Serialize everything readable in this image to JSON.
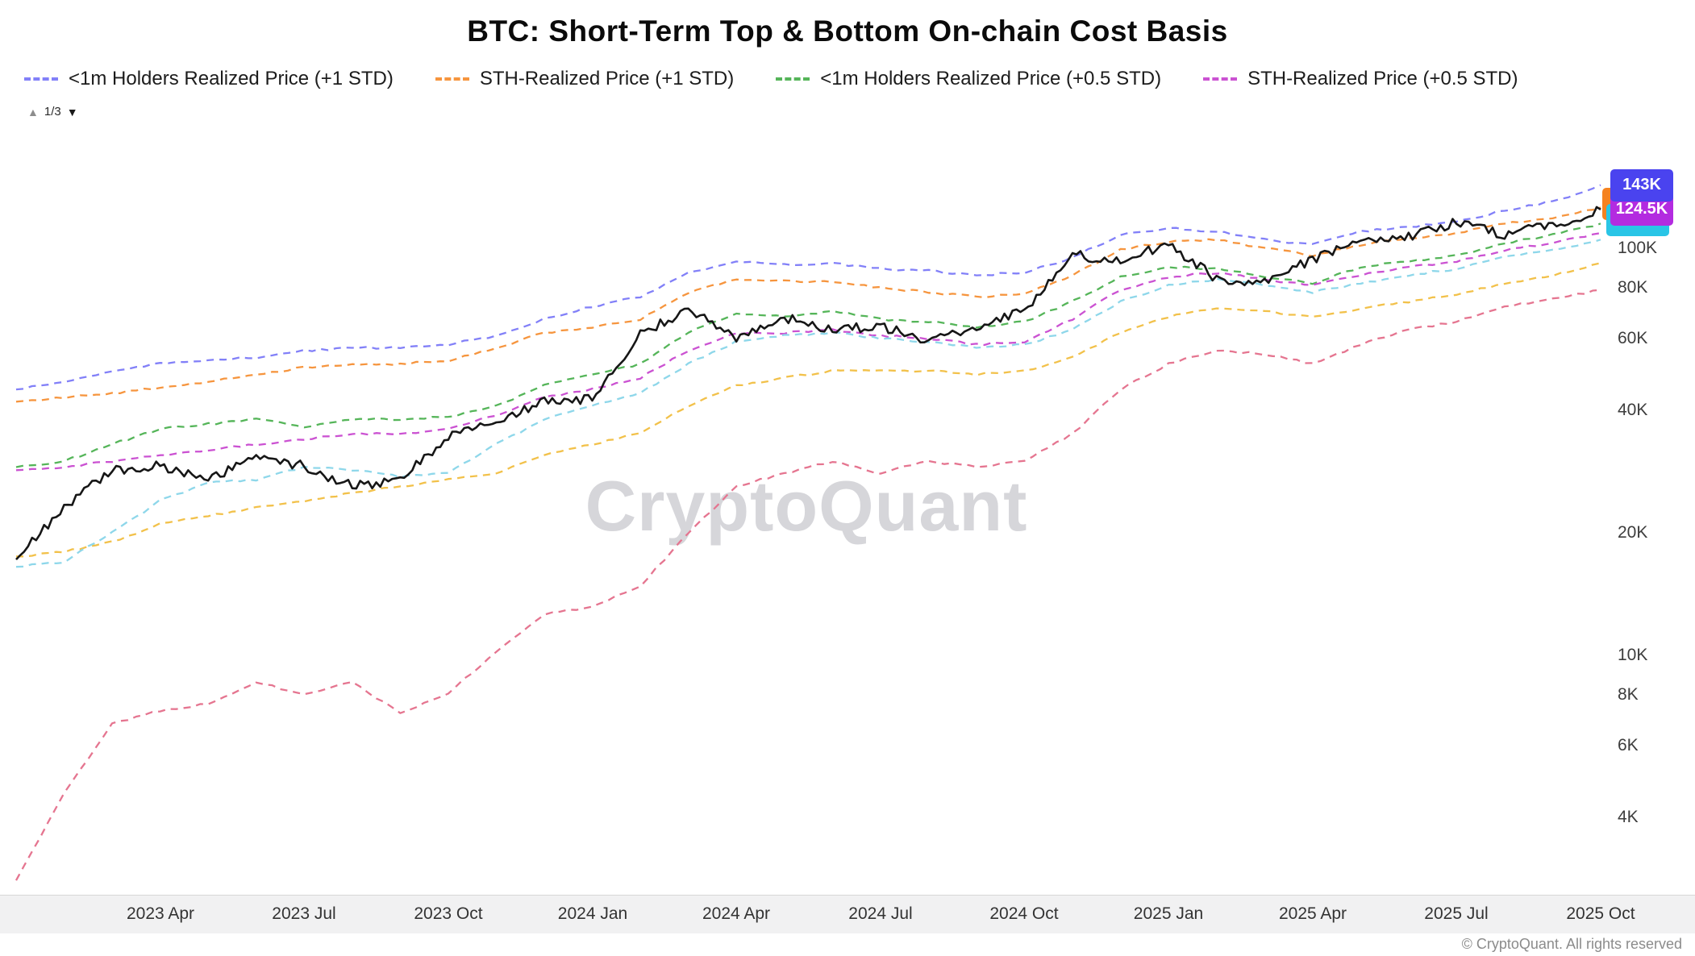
{
  "title": "BTC: Short-Term Top & Bottom On-chain Cost Basis",
  "watermark": "CryptoQuant",
  "footer": "© CryptoQuant. All rights reserved",
  "legend": {
    "items": [
      {
        "label": "<1m Holders Realized Price (+1 STD)",
        "color": "#8280f8"
      },
      {
        "label": "STH-Realized Price (+1 STD)",
        "color": "#f6953e"
      },
      {
        "label": "<1m Holders Realized Price (+0.5 STD)",
        "color": "#55b559"
      },
      {
        "label": "STH-Realized Price (+0.5 STD)",
        "color": "#cb52d2"
      }
    ],
    "pagination": {
      "up_icon": "▲",
      "label": "1/3",
      "down_icon": "▼"
    }
  },
  "price_badges": [
    {
      "text": "143K",
      "color": "#4a43ef",
      "value": 143
    },
    {
      "text": "124.5K",
      "color": "#b32be0",
      "value": 124.5,
      "behind": [
        {
          "color": "#f58220",
          "side": "top"
        },
        {
          "color": "#29c5e6",
          "side": "bottom"
        }
      ]
    }
  ],
  "chart_data": {
    "type": "line",
    "y_scale": "log",
    "unit": "K (thousand USD)",
    "ylim_k": [
      2.6,
      160
    ],
    "grid": "off",
    "legend_position": "top",
    "x": [
      "2023-01",
      "2023-02",
      "2023-03",
      "2023-04",
      "2023-05",
      "2023-06",
      "2023-07",
      "2023-08",
      "2023-09",
      "2023-10",
      "2023-11",
      "2023-12",
      "2024-01",
      "2024-02",
      "2024-03",
      "2024-04",
      "2024-05",
      "2024-06",
      "2024-07",
      "2024-08",
      "2024-09",
      "2024-10",
      "2024-11",
      "2024-12",
      "2025-01",
      "2025-02",
      "2025-03",
      "2025-04",
      "2025-05",
      "2025-06",
      "2025-07",
      "2025-08",
      "2025-09",
      "2025-10"
    ],
    "x_ticks": [
      {
        "label": "2023 Apr",
        "index": 3
      },
      {
        "label": "2023 Jul",
        "index": 6
      },
      {
        "label": "2023 Oct",
        "index": 9
      },
      {
        "label": "2024 Jan",
        "index": 12
      },
      {
        "label": "2024 Apr",
        "index": 15
      },
      {
        "label": "2024 Jul",
        "index": 18
      },
      {
        "label": "2024 Oct",
        "index": 21
      },
      {
        "label": "2025 Jan",
        "index": 24
      },
      {
        "label": "2025 Apr",
        "index": 27
      },
      {
        "label": "2025 Jul",
        "index": 30
      },
      {
        "label": "2025 Oct",
        "index": 33
      }
    ],
    "y_ticks": [
      {
        "label": "100K",
        "value": 100
      },
      {
        "label": "80K",
        "value": 80
      },
      {
        "label": "60K",
        "value": 60
      },
      {
        "label": "40K",
        "value": 40
      },
      {
        "label": "20K",
        "value": 20
      },
      {
        "label": "10K",
        "value": 10
      },
      {
        "label": "8K",
        "value": 8
      },
      {
        "label": "6K",
        "value": 6
      },
      {
        "label": "4K",
        "value": 4
      }
    ],
    "series": [
      {
        "id": "lt1m-holders-realized-price-plus-1-std",
        "name": "<1m Holders Realized Price (+1 STD)",
        "color": "#8280f8",
        "style": "dashed",
        "values": [
          45,
          47,
          50,
          52,
          53,
          54,
          56,
          57,
          57,
          58,
          61,
          67,
          72,
          76,
          87,
          93,
          91,
          92,
          89,
          88,
          86,
          87,
          95,
          108,
          112,
          110,
          105,
          102,
          110,
          113,
          116,
          124,
          130,
          143
        ]
      },
      {
        "id": "sth-realized-price-plus-1-std",
        "name": "STH-Realized Price (+1 STD)",
        "color": "#f6953e",
        "style": "dashed",
        "values": [
          42,
          43,
          44,
          45.5,
          47,
          49,
          51,
          52,
          52,
          53,
          57,
          62,
          64,
          67,
          78,
          84,
          83,
          83,
          80,
          78,
          76,
          77,
          86,
          99,
          104,
          105,
          100,
          96,
          102,
          106,
          109,
          115,
          119,
          126
        ]
      },
      {
        "id": "lt1m-holders-realized-price-plus-05-std",
        "name": "<1m Holders Realized Price (+0.5 STD)",
        "color": "#55b559",
        "style": "dashed",
        "values": [
          29,
          30,
          33,
          36,
          37,
          38,
          36.5,
          38,
          38,
          38.5,
          41,
          46,
          49,
          52,
          62,
          69,
          68,
          70,
          67,
          66,
          64,
          66,
          74,
          85,
          90,
          89,
          85,
          82,
          90,
          93,
          96,
          103,
          108,
          115
        ]
      },
      {
        "id": "sth-realized-price-plus-05-std",
        "name": "STH-Realized Price (+0.5 STD)",
        "color": "#cb52d2",
        "style": "dashed",
        "values": [
          28.5,
          29,
          30,
          31,
          32,
          33,
          34,
          35,
          35,
          36,
          39,
          43,
          45,
          48,
          56,
          62,
          62,
          63,
          61,
          60,
          58,
          59,
          67,
          79,
          85,
          87,
          84,
          81,
          86,
          90,
          93,
          99,
          103,
          109
        ]
      },
      {
        "id": "yellow-dashed-line",
        "name": "yellow dashed band",
        "color": "#f2c14a",
        "style": "dashed",
        "values": [
          17.5,
          18,
          19,
          21,
          22,
          23,
          24,
          25,
          26,
          27,
          28,
          31,
          33,
          35,
          41,
          46,
          48,
          50,
          50,
          50,
          49,
          50,
          54,
          62,
          68,
          71,
          70,
          68,
          71,
          74,
          77,
          82,
          86,
          92
        ]
      },
      {
        "id": "cyan-dashed-line",
        "name": "cyan dashed band",
        "color": "#8ed7ea",
        "style": "dashed",
        "values": [
          16.5,
          17,
          20,
          24,
          26.5,
          27,
          29,
          28.5,
          27.5,
          28,
          33,
          38,
          41,
          44,
          52,
          59,
          61,
          62,
          60,
          59,
          57,
          58,
          63,
          74,
          81,
          84,
          81,
          78,
          82,
          86,
          89,
          95,
          99,
          105
        ]
      },
      {
        "id": "pink-dashed-line",
        "name": "pink dashed lower band",
        "color": "#e57590",
        "style": "dashed",
        "values": [
          2.8,
          4.6,
          6.8,
          7.3,
          7.6,
          8.6,
          8.0,
          8.6,
          7.2,
          8.1,
          10.2,
          12.6,
          13.2,
          14.8,
          20,
          26,
          28,
          30,
          28,
          30,
          29,
          30,
          35,
          45,
          52,
          56,
          55,
          52,
          58,
          63,
          66,
          72,
          75,
          79
        ]
      },
      {
        "id": "btc-price",
        "name": "BTC price",
        "color": "#161616",
        "style": "solid",
        "values": [
          17.2,
          23.1,
          28.5,
          29.2,
          27.2,
          30.5,
          29.2,
          26.0,
          27.0,
          34.5,
          37.7,
          42.3,
          42.6,
          61.2,
          71.3,
          60.6,
          67.5,
          62.7,
          64.6,
          59.0,
          63.3,
          70.2,
          96.4,
          93.4,
          102.4,
          84.3,
          82.5,
          94.2,
          104.6,
          107.1,
          115.8,
          108.2,
          114.0,
          124.5
        ]
      }
    ]
  }
}
